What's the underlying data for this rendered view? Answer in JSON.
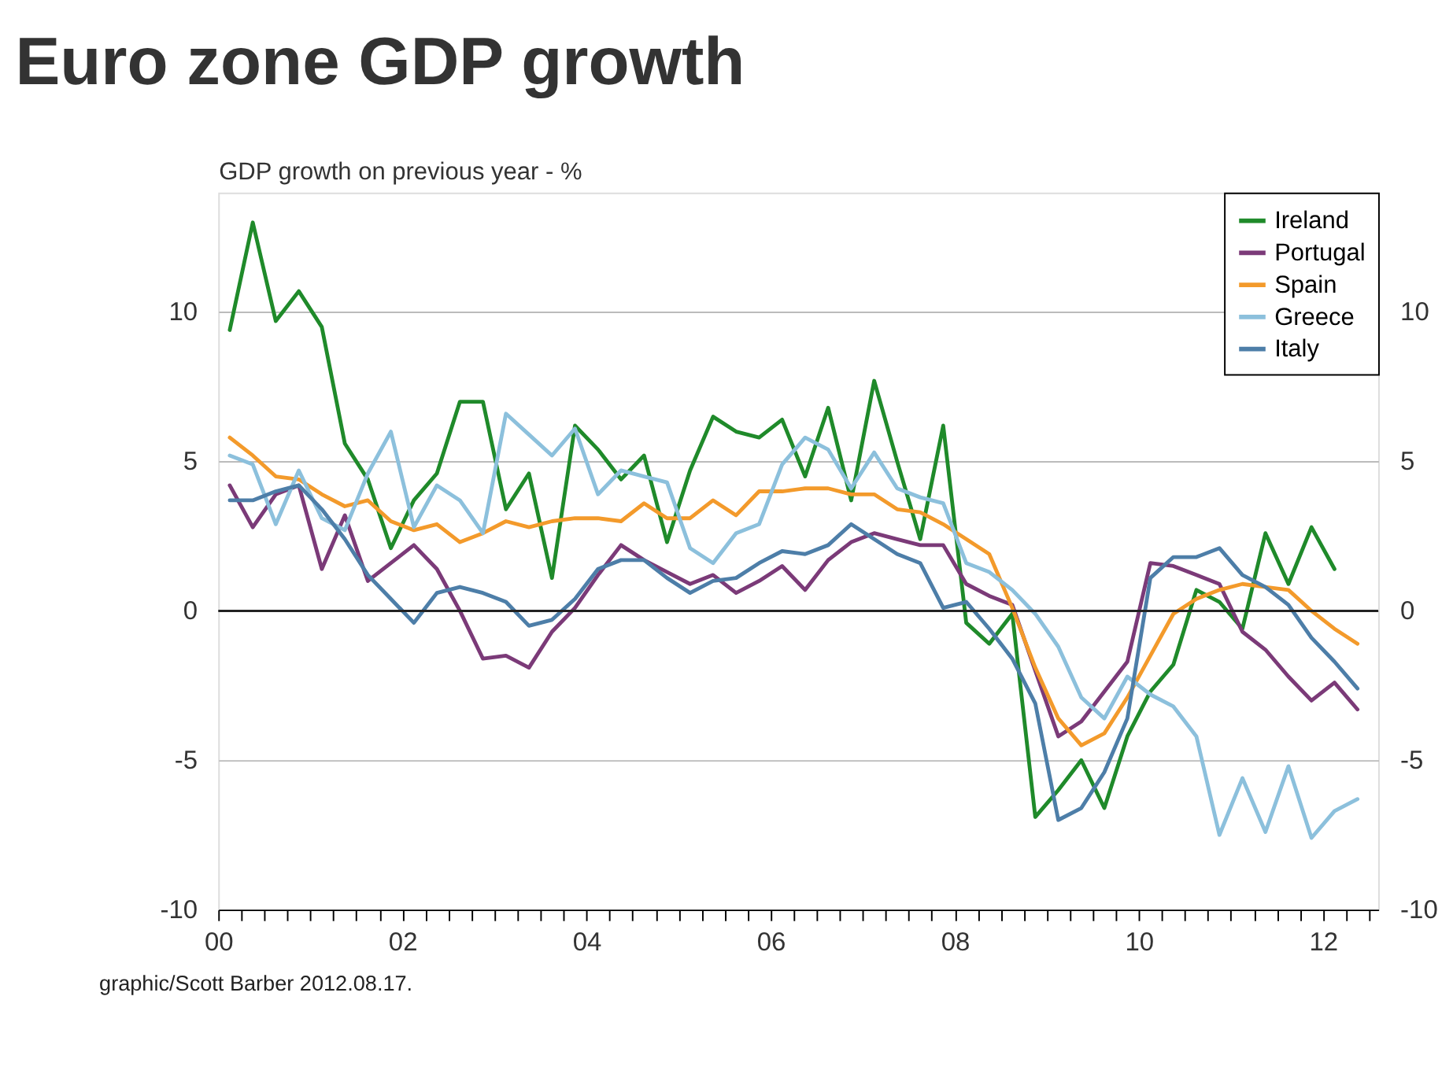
{
  "chart_data": {
    "type": "line",
    "title": "Euro zone GDP growth",
    "ylabel": "GDP growth on previous year - %",
    "annotations": [
      "graphic/Scott Barber 2012.08.17."
    ],
    "x": [
      2000.125,
      2000.375,
      2000.625,
      2000.875,
      2001.125,
      2001.375,
      2001.625,
      2001.875,
      2002.125,
      2002.375,
      2002.625,
      2002.875,
      2003.125,
      2003.375,
      2003.625,
      2003.875,
      2004.125,
      2004.375,
      2004.625,
      2004.875,
      2005.125,
      2005.375,
      2005.625,
      2005.875,
      2006.125,
      2006.375,
      2006.625,
      2006.875,
      2007.125,
      2007.375,
      2007.625,
      2007.875,
      2008.125,
      2008.375,
      2008.625,
      2008.875,
      2009.125,
      2009.375,
      2009.625,
      2009.875,
      2010.125,
      2010.375,
      2010.625,
      2010.875,
      2011.125,
      2011.375,
      2011.625,
      2011.875,
      2012.125,
      2012.375
    ],
    "series": [
      {
        "name": "Ireland",
        "color": "#1f8a2a",
        "values": [
          9.4,
          13.0,
          9.7,
          10.7,
          9.5,
          5.6,
          4.4,
          2.1,
          3.7,
          4.6,
          7.0,
          7.0,
          3.4,
          4.6,
          1.1,
          6.2,
          5.4,
          4.4,
          5.2,
          2.3,
          4.7,
          6.5,
          6.0,
          5.8,
          6.4,
          4.5,
          6.8,
          3.7,
          7.7,
          5.0,
          2.4,
          6.2,
          -0.4,
          -1.1,
          -0.1,
          -6.9,
          -6.0,
          -5.0,
          -6.6,
          -4.2,
          -2.7,
          -1.8,
          0.7,
          0.3,
          -0.6,
          2.6,
          0.9,
          2.8,
          1.4,
          null
        ]
      },
      {
        "name": "Portugal",
        "color": "#7b3a78",
        "values": [
          4.2,
          2.8,
          3.9,
          4.2,
          1.4,
          3.2,
          1.0,
          1.6,
          2.2,
          1.4,
          0.0,
          -1.6,
          -1.5,
          -1.9,
          -0.7,
          0.1,
          1.2,
          2.2,
          1.7,
          1.3,
          0.9,
          1.2,
          0.6,
          1.0,
          1.5,
          0.7,
          1.7,
          2.3,
          2.6,
          2.4,
          2.2,
          2.2,
          0.9,
          0.5,
          0.2,
          -2.0,
          -4.2,
          -3.7,
          -2.7,
          -1.7,
          1.6,
          1.5,
          1.2,
          0.9,
          -0.7,
          -1.3,
          -2.2,
          -3.0,
          -2.4,
          -3.3
        ]
      },
      {
        "name": "Spain",
        "color": "#f39a2b",
        "values": [
          5.8,
          5.2,
          4.5,
          4.4,
          3.9,
          3.5,
          3.7,
          3.0,
          2.7,
          2.9,
          2.3,
          2.6,
          3.0,
          2.8,
          3.0,
          3.1,
          3.1,
          3.0,
          3.6,
          3.1,
          3.1,
          3.7,
          3.2,
          4.0,
          4.0,
          4.1,
          4.1,
          3.9,
          3.9,
          3.4,
          3.3,
          2.9,
          2.4,
          1.9,
          0.1,
          -1.9,
          -3.6,
          -4.5,
          -4.1,
          -2.9,
          -1.5,
          -0.1,
          0.4,
          0.7,
          0.9,
          0.8,
          0.7,
          0.0,
          -0.6,
          -1.1
        ]
      },
      {
        "name": "Greece",
        "color": "#8cc0dc",
        "values": [
          5.2,
          4.9,
          2.9,
          4.7,
          3.1,
          2.7,
          4.6,
          6.0,
          2.8,
          4.2,
          3.7,
          2.6,
          6.6,
          5.9,
          5.2,
          6.1,
          3.9,
          4.7,
          4.5,
          4.3,
          2.1,
          1.6,
          2.6,
          2.9,
          4.9,
          5.8,
          5.4,
          4.1,
          5.3,
          4.1,
          3.8,
          3.6,
          1.6,
          1.3,
          0.7,
          -0.1,
          -1.2,
          -2.9,
          -3.6,
          -2.2,
          -2.8,
          -3.2,
          -4.2,
          -7.5,
          -5.6,
          -7.4,
          -5.2,
          -7.6,
          -6.7,
          -6.3
        ]
      },
      {
        "name": "Italy",
        "color": "#4d7ea8",
        "values": [
          3.7,
          3.7,
          4.0,
          4.2,
          3.4,
          2.4,
          1.2,
          0.4,
          -0.4,
          0.6,
          0.8,
          0.6,
          0.3,
          -0.5,
          -0.3,
          0.4,
          1.4,
          1.7,
          1.7,
          1.1,
          0.6,
          1.0,
          1.1,
          1.6,
          2.0,
          1.9,
          2.2,
          2.9,
          2.4,
          1.9,
          1.6,
          0.1,
          0.3,
          -0.6,
          -1.6,
          -3.1,
          -7.0,
          -6.6,
          -5.4,
          -3.6,
          1.1,
          1.8,
          1.8,
          2.1,
          1.2,
          0.8,
          0.2,
          -0.9,
          -1.7,
          -2.6
        ]
      }
    ],
    "xlim": [
      2000,
      2012.6
    ],
    "xticks": [
      {
        "value": 2000,
        "label": "00"
      },
      {
        "value": 2000.25,
        "label": null
      },
      {
        "value": 2000.5,
        "label": null
      },
      {
        "value": 2000.75,
        "label": null
      },
      {
        "value": 2001,
        "label": null
      },
      {
        "value": 2001.25,
        "label": null
      },
      {
        "value": 2001.5,
        "label": null
      },
      {
        "value": 2001.75,
        "label": null
      },
      {
        "value": 2002,
        "label": "02"
      },
      {
        "value": 2002.25,
        "label": null
      },
      {
        "value": 2002.5,
        "label": null
      },
      {
        "value": 2002.75,
        "label": null
      },
      {
        "value": 2003,
        "label": null
      },
      {
        "value": 2003.25,
        "label": null
      },
      {
        "value": 2003.5,
        "label": null
      },
      {
        "value": 2003.75,
        "label": null
      },
      {
        "value": 2004,
        "label": "04"
      },
      {
        "value": 2004.25,
        "label": null
      },
      {
        "value": 2004.5,
        "label": null
      },
      {
        "value": 2004.75,
        "label": null
      },
      {
        "value": 2005,
        "label": null
      },
      {
        "value": 2005.25,
        "label": null
      },
      {
        "value": 2005.5,
        "label": null
      },
      {
        "value": 2005.75,
        "label": null
      },
      {
        "value": 2006,
        "label": "06"
      },
      {
        "value": 2006.25,
        "label": null
      },
      {
        "value": 2006.5,
        "label": null
      },
      {
        "value": 2006.75,
        "label": null
      },
      {
        "value": 2007,
        "label": null
      },
      {
        "value": 2007.25,
        "label": null
      },
      {
        "value": 2007.5,
        "label": null
      },
      {
        "value": 2007.75,
        "label": null
      },
      {
        "value": 2008,
        "label": "08"
      },
      {
        "value": 2008.25,
        "label": null
      },
      {
        "value": 2008.5,
        "label": null
      },
      {
        "value": 2008.75,
        "label": null
      },
      {
        "value": 2009,
        "label": null
      },
      {
        "value": 2009.25,
        "label": null
      },
      {
        "value": 2009.5,
        "label": null
      },
      {
        "value": 2009.75,
        "label": null
      },
      {
        "value": 2010,
        "label": "10"
      },
      {
        "value": 2010.25,
        "label": null
      },
      {
        "value": 2010.5,
        "label": null
      },
      {
        "value": 2010.75,
        "label": null
      },
      {
        "value": 2011,
        "label": null
      },
      {
        "value": 2011.25,
        "label": null
      },
      {
        "value": 2011.5,
        "label": null
      },
      {
        "value": 2011.75,
        "label": null
      },
      {
        "value": 2012,
        "label": "12"
      },
      {
        "value": 2012.25,
        "label": null
      },
      {
        "value": 2012.5,
        "label": null
      }
    ],
    "ylim": [
      -10,
      14
    ],
    "yticks": [
      -10,
      -5,
      0,
      5,
      10
    ],
    "y2lim": [
      -10,
      14
    ],
    "y2ticks": [
      -10,
      -5,
      0,
      5,
      10
    ],
    "ref_lines": [
      {
        "axis": "y",
        "value": 0,
        "color": "#222222"
      }
    ],
    "grid": "y",
    "legend": "top right",
    "line_style": "solid"
  }
}
